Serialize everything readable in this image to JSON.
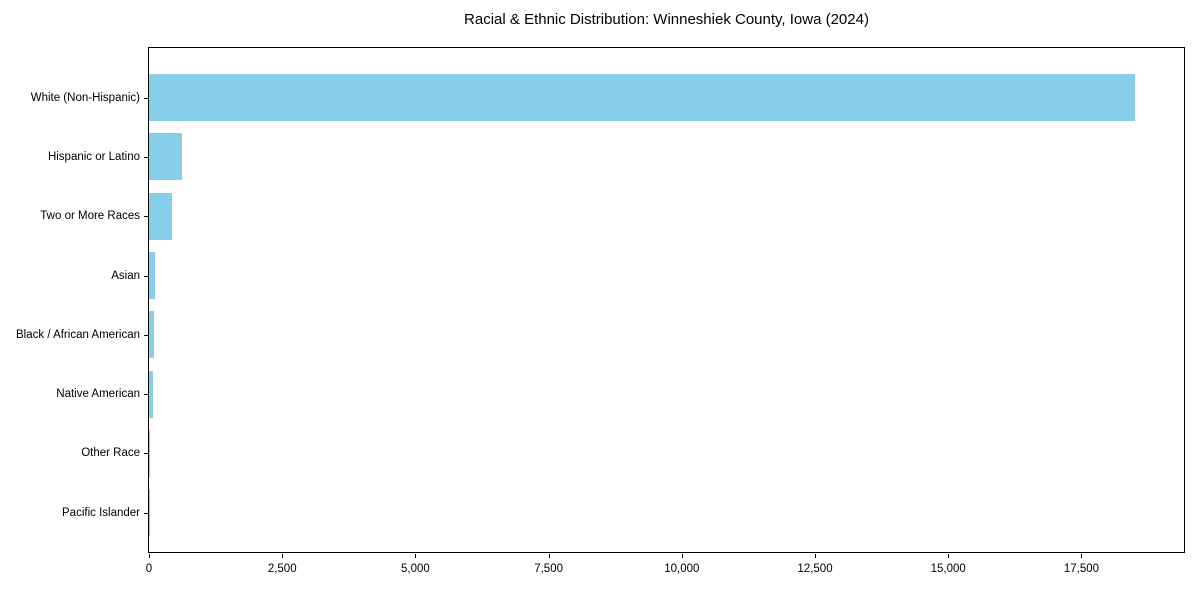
{
  "chart_data": {
    "type": "bar",
    "orientation": "horizontal",
    "title": "Racial & Ethnic Distribution: Winneshiek County, Iowa (2024)",
    "categories": [
      "White (Non-Hispanic)",
      "Hispanic or Latino",
      "Two or More Races",
      "Asian",
      "Black / African American",
      "Native American",
      "Other Race",
      "Pacific Islander"
    ],
    "values": [
      18500,
      610,
      440,
      110,
      100,
      75,
      25,
      10
    ],
    "bar_color": "#87CEEB",
    "xlabel": "",
    "ylabel": "",
    "xlim": [
      0,
      19425
    ],
    "xticks": {
      "values": [
        0,
        2500,
        5000,
        7500,
        10000,
        12500,
        15000,
        17500
      ],
      "labels": [
        "0",
        "2,500",
        "5,000",
        "7,500",
        "10,000",
        "12,500",
        "15,000",
        "17,500"
      ]
    },
    "grid": false,
    "legend_position": "none"
  }
}
